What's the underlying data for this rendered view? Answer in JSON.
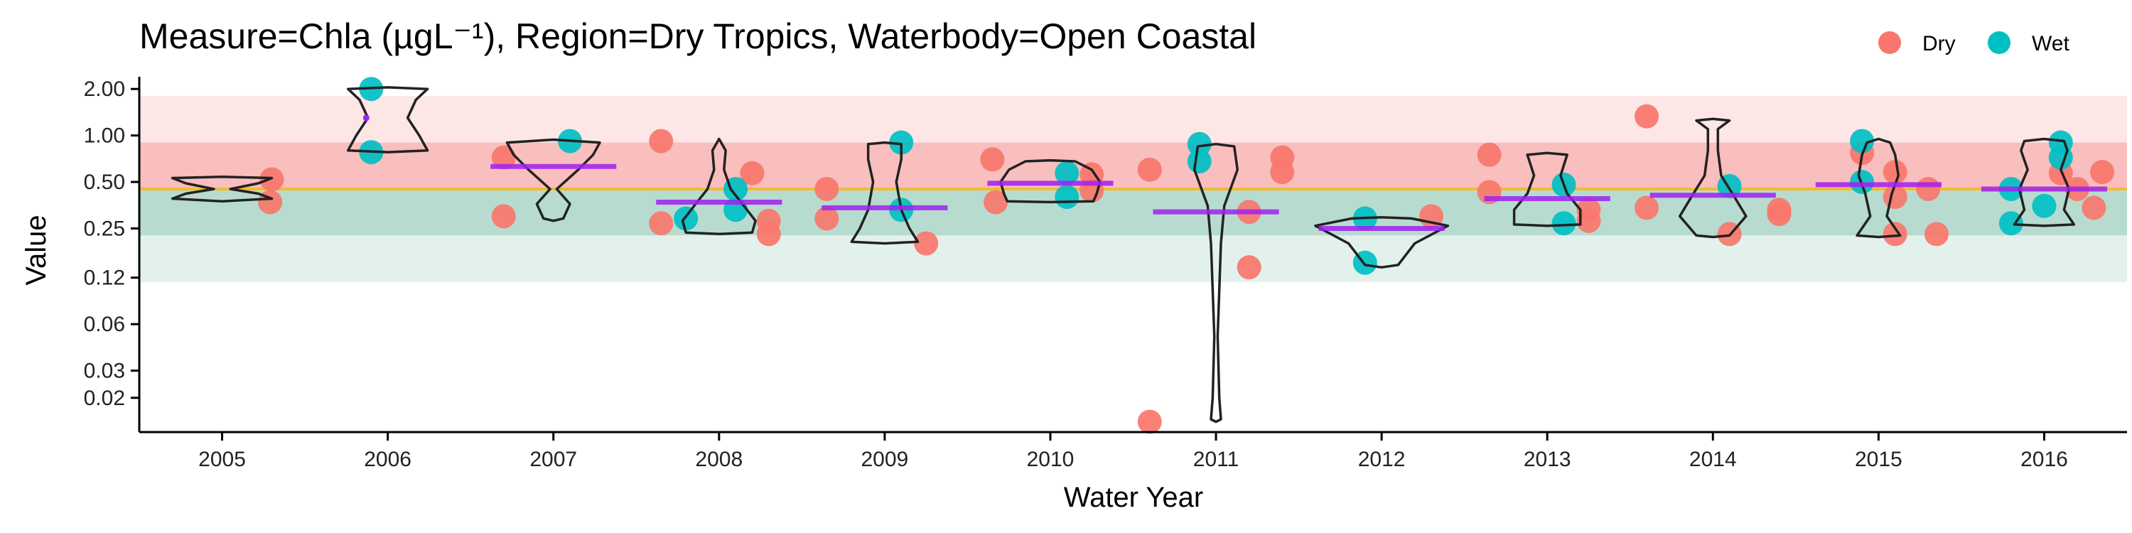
{
  "chart_data": {
    "type": "scatter",
    "title": "Measure=Chla (µgL⁻¹), Region=Dry Tropics, Waterbody=Open Coastal",
    "xlabel": "Water Year",
    "ylabel": "Value",
    "y_scale": "log",
    "ylim": [
      0.012,
      2.4
    ],
    "y_ticks": [
      0.02,
      0.03,
      0.06,
      0.12,
      0.25,
      0.5,
      1.0,
      2.0
    ],
    "y_tick_labels": [
      "0.02",
      "0.03",
      "0.06",
      "0.12",
      "0.25",
      "0.50",
      "1.00",
      "2.00"
    ],
    "categories": [
      "2005",
      "2006",
      "2007",
      "2008",
      "2009",
      "2010",
      "2011",
      "2012",
      "2013",
      "2014",
      "2015",
      "2016"
    ],
    "guideline": 0.45,
    "bands": [
      {
        "from": 0.9,
        "to": 1.8,
        "color": "#fde6e6"
      },
      {
        "from": 0.45,
        "to": 0.9,
        "color": "#f9bebe"
      },
      {
        "from": 0.225,
        "to": 0.45,
        "color": "#b7dccf"
      },
      {
        "from": 0.1125,
        "to": 0.225,
        "color": "#e3f1ec"
      }
    ],
    "legend": {
      "position": "top-right",
      "entries": [
        {
          "name": "Dry",
          "color": "#f8766d"
        },
        {
          "name": "Wet",
          "color": "#00bfc4"
        }
      ]
    },
    "series": [
      {
        "name": "Dry",
        "color": "#f8766d",
        "points": [
          {
            "year": "2005",
            "offset": 0.3,
            "value": 0.52
          },
          {
            "year": "2005",
            "offset": 0.29,
            "value": 0.37
          },
          {
            "year": "2007",
            "offset": -0.3,
            "value": 0.72
          },
          {
            "year": "2007",
            "offset": -0.3,
            "value": 0.3
          },
          {
            "year": "2008",
            "offset": -0.35,
            "value": 0.92
          },
          {
            "year": "2008",
            "offset": -0.35,
            "value": 0.27
          },
          {
            "year": "2008",
            "offset": 0.2,
            "value": 0.57
          },
          {
            "year": "2008",
            "offset": 0.3,
            "value": 0.28
          },
          {
            "year": "2008",
            "offset": 0.3,
            "value": 0.23
          },
          {
            "year": "2009",
            "offset": -0.35,
            "value": 0.45
          },
          {
            "year": "2009",
            "offset": -0.35,
            "value": 0.29
          },
          {
            "year": "2009",
            "offset": 0.25,
            "value": 0.2
          },
          {
            "year": "2010",
            "offset": -0.35,
            "value": 0.7
          },
          {
            "year": "2010",
            "offset": -0.33,
            "value": 0.37
          },
          {
            "year": "2010",
            "offset": 0.25,
            "value": 0.56
          },
          {
            "year": "2010",
            "offset": 0.25,
            "value": 0.44
          },
          {
            "year": "2011",
            "offset": -0.4,
            "value": 0.6
          },
          {
            "year": "2011",
            "offset": -0.4,
            "value": 0.014
          },
          {
            "year": "2011",
            "offset": 0.2,
            "value": 0.32
          },
          {
            "year": "2011",
            "offset": 0.2,
            "value": 0.14
          },
          {
            "year": "2011",
            "offset": 0.4,
            "value": 0.72
          },
          {
            "year": "2011",
            "offset": 0.4,
            "value": 0.58
          },
          {
            "year": "2012",
            "offset": 0.3,
            "value": 0.3
          },
          {
            "year": "2013",
            "offset": -0.35,
            "value": 0.75
          },
          {
            "year": "2013",
            "offset": -0.35,
            "value": 0.43
          },
          {
            "year": "2013",
            "offset": 0.25,
            "value": 0.33
          },
          {
            "year": "2013",
            "offset": 0.25,
            "value": 0.28
          },
          {
            "year": "2014",
            "offset": -0.4,
            "value": 1.33
          },
          {
            "year": "2014",
            "offset": -0.4,
            "value": 0.34
          },
          {
            "year": "2014",
            "offset": 0.1,
            "value": 0.23
          },
          {
            "year": "2014",
            "offset": 0.4,
            "value": 0.33
          },
          {
            "year": "2014",
            "offset": 0.4,
            "value": 0.31
          },
          {
            "year": "2015",
            "offset": -0.1,
            "value": 0.77
          },
          {
            "year": "2015",
            "offset": 0.1,
            "value": 0.58
          },
          {
            "year": "2015",
            "offset": 0.1,
            "value": 0.4
          },
          {
            "year": "2015",
            "offset": 0.1,
            "value": 0.23
          },
          {
            "year": "2015",
            "offset": 0.3,
            "value": 0.45
          },
          {
            "year": "2015",
            "offset": 0.35,
            "value": 0.23
          },
          {
            "year": "2016",
            "offset": 0.1,
            "value": 0.57
          },
          {
            "year": "2016",
            "offset": 0.2,
            "value": 0.45
          },
          {
            "year": "2016",
            "offset": 0.3,
            "value": 0.34
          },
          {
            "year": "2016",
            "offset": 0.35,
            "value": 0.58
          }
        ]
      },
      {
        "name": "Wet",
        "color": "#00bfc4",
        "points": [
          {
            "year": "2006",
            "offset": -0.1,
            "value": 2.0
          },
          {
            "year": "2006",
            "offset": -0.1,
            "value": 0.78
          },
          {
            "year": "2007",
            "offset": 0.1,
            "value": 0.92
          },
          {
            "year": "2008",
            "offset": -0.2,
            "value": 0.29
          },
          {
            "year": "2008",
            "offset": 0.1,
            "value": 0.45
          },
          {
            "year": "2008",
            "offset": 0.1,
            "value": 0.33
          },
          {
            "year": "2009",
            "offset": 0.1,
            "value": 0.9
          },
          {
            "year": "2009",
            "offset": 0.1,
            "value": 0.33
          },
          {
            "year": "2010",
            "offset": 0.1,
            "value": 0.57
          },
          {
            "year": "2010",
            "offset": 0.1,
            "value": 0.4
          },
          {
            "year": "2011",
            "offset": -0.1,
            "value": 0.88
          },
          {
            "year": "2011",
            "offset": -0.1,
            "value": 0.68
          },
          {
            "year": "2012",
            "offset": -0.1,
            "value": 0.29
          },
          {
            "year": "2012",
            "offset": -0.1,
            "value": 0.15
          },
          {
            "year": "2013",
            "offset": 0.1,
            "value": 0.48
          },
          {
            "year": "2013",
            "offset": 0.1,
            "value": 0.27
          },
          {
            "year": "2014",
            "offset": 0.1,
            "value": 0.47
          },
          {
            "year": "2015",
            "offset": -0.1,
            "value": 0.92
          },
          {
            "year": "2015",
            "offset": -0.1,
            "value": 0.5
          },
          {
            "year": "2016",
            "offset": -0.2,
            "value": 0.45
          },
          {
            "year": "2016",
            "offset": -0.2,
            "value": 0.27
          },
          {
            "year": "2016",
            "offset": 0.1,
            "value": 0.9
          },
          {
            "year": "2016",
            "offset": 0.1,
            "value": 0.72
          },
          {
            "year": "2016",
            "offset": 0.0,
            "value": 0.35
          }
        ]
      }
    ],
    "violins": [
      {
        "year": "2005",
        "profile": [
          [
            0.375,
            0
          ],
          [
            0.39,
            0.3
          ],
          [
            0.42,
            0.22
          ],
          [
            0.45,
            0.05
          ],
          [
            0.49,
            0.22
          ],
          [
            0.53,
            0.3
          ],
          [
            0.54,
            0
          ]
        ]
      },
      {
        "year": "2006",
        "profile": [
          [
            0.78,
            0
          ],
          [
            0.8,
            0.24
          ],
          [
            1.0,
            0.19
          ],
          [
            1.3,
            0.12
          ],
          [
            1.7,
            0.17
          ],
          [
            2.0,
            0.24
          ],
          [
            2.05,
            0
          ]
        ]
      },
      {
        "year": "2007",
        "profile": [
          [
            0.28,
            0
          ],
          [
            0.29,
            0.06
          ],
          [
            0.36,
            0.1
          ],
          [
            0.45,
            0.02
          ],
          [
            0.6,
            0.15
          ],
          [
            0.75,
            0.24
          ],
          [
            0.9,
            0.28
          ],
          [
            0.94,
            0
          ]
        ]
      },
      {
        "year": "2008",
        "profile": [
          [
            0.23,
            0
          ],
          [
            0.235,
            0.2
          ],
          [
            0.28,
            0.22
          ],
          [
            0.35,
            0.15
          ],
          [
            0.45,
            0.07
          ],
          [
            0.6,
            0.03
          ],
          [
            0.8,
            0.04
          ],
          [
            0.95,
            0
          ]
        ]
      },
      {
        "year": "2009",
        "profile": [
          [
            0.2,
            0
          ],
          [
            0.205,
            0.2
          ],
          [
            0.25,
            0.15
          ],
          [
            0.33,
            0.1
          ],
          [
            0.5,
            0.07
          ],
          [
            0.7,
            0.1
          ],
          [
            0.88,
            0.1
          ],
          [
            0.9,
            0
          ]
        ]
      },
      {
        "year": "2010",
        "profile": [
          [
            0.37,
            0
          ],
          [
            0.375,
            0.26
          ],
          [
            0.42,
            0.28
          ],
          [
            0.5,
            0.3
          ],
          [
            0.6,
            0.25
          ],
          [
            0.68,
            0.15
          ],
          [
            0.69,
            0
          ]
        ]
      },
      {
        "year": "2011",
        "profile": [
          [
            0.014,
            0
          ],
          [
            0.0145,
            0.03
          ],
          [
            0.02,
            0.02
          ],
          [
            0.05,
            0.01
          ],
          [
            0.1,
            0.02
          ],
          [
            0.2,
            0.03
          ],
          [
            0.35,
            0.05
          ],
          [
            0.6,
            0.13
          ],
          [
            0.85,
            0.11
          ],
          [
            0.88,
            0
          ]
        ]
      },
      {
        "year": "2012",
        "profile": [
          [
            0.14,
            0
          ],
          [
            0.145,
            0.1
          ],
          [
            0.2,
            0.2
          ],
          [
            0.26,
            0.4
          ],
          [
            0.29,
            0.18
          ],
          [
            0.295,
            0
          ]
        ]
      },
      {
        "year": "2013",
        "profile": [
          [
            0.26,
            0
          ],
          [
            0.265,
            0.2
          ],
          [
            0.33,
            0.2
          ],
          [
            0.42,
            0.12
          ],
          [
            0.55,
            0.08
          ],
          [
            0.75,
            0.12
          ],
          [
            0.77,
            0
          ]
        ]
      },
      {
        "year": "2014",
        "profile": [
          [
            0.22,
            0
          ],
          [
            0.225,
            0.1
          ],
          [
            0.3,
            0.2
          ],
          [
            0.4,
            0.13
          ],
          [
            0.55,
            0.05
          ],
          [
            0.8,
            0.03
          ],
          [
            1.1,
            0.03
          ],
          [
            1.25,
            0.1
          ],
          [
            1.28,
            0
          ]
        ]
      },
      {
        "year": "2015",
        "profile": [
          [
            0.22,
            0
          ],
          [
            0.225,
            0.13
          ],
          [
            0.3,
            0.05
          ],
          [
            0.42,
            0.08
          ],
          [
            0.55,
            0.12
          ],
          [
            0.75,
            0.1
          ],
          [
            0.9,
            0.07
          ],
          [
            0.95,
            0
          ]
        ]
      },
      {
        "year": "2016",
        "profile": [
          [
            0.26,
            0
          ],
          [
            0.265,
            0.18
          ],
          [
            0.33,
            0.12
          ],
          [
            0.45,
            0.15
          ],
          [
            0.6,
            0.1
          ],
          [
            0.8,
            0.14
          ],
          [
            0.92,
            0.12
          ],
          [
            0.95,
            0
          ]
        ]
      }
    ],
    "medians": [
      {
        "year": "2007",
        "value": 0.63
      },
      {
        "year": "2008",
        "value": 0.37
      },
      {
        "year": "2009",
        "value": 0.34
      },
      {
        "year": "2010",
        "value": 0.49
      },
      {
        "year": "2011",
        "value": 0.32
      },
      {
        "year": "2012",
        "value": 0.25
      },
      {
        "year": "2013",
        "value": 0.39
      },
      {
        "year": "2014",
        "value": 0.41
      },
      {
        "year": "2015",
        "value": 0.48
      },
      {
        "year": "2016",
        "value": 0.45
      }
    ],
    "mean_points": [
      {
        "year": "2006",
        "value": 1.3
      }
    ]
  }
}
